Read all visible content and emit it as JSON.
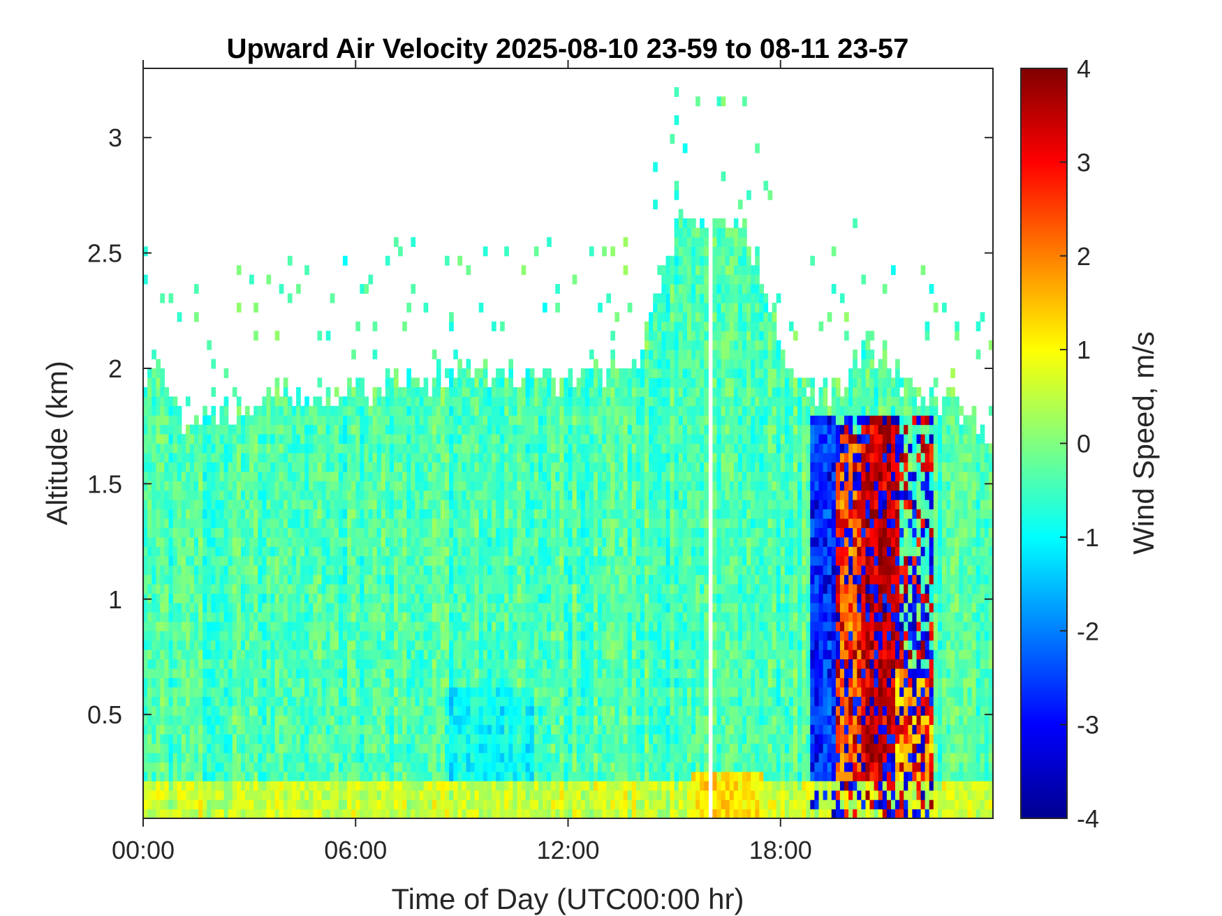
{
  "chart_data": {
    "type": "heatmap",
    "title": "Upward Air Velocity 2025-08-10 23-59 to 08-11 23-57",
    "xlabel": "Time of Day (UTC00:00 hr)",
    "ylabel": "Altitude (km)",
    "colorbar_label": "Wind Speed, m/s",
    "x_unit": "hours",
    "xlim": [
      0,
      24
    ],
    "ylim": [
      0.05,
      3.3
    ],
    "clim": [
      -4,
      4
    ],
    "colormap": "jet",
    "x_ticks": [
      {
        "value": 0,
        "label": "00:00"
      },
      {
        "value": 6,
        "label": "06:00"
      },
      {
        "value": 12,
        "label": "12:00"
      },
      {
        "value": 18,
        "label": "18:00"
      }
    ],
    "y_ticks": [
      {
        "value": 0.5,
        "label": "0.5"
      },
      {
        "value": 1,
        "label": "1"
      },
      {
        "value": 1.5,
        "label": "1.5"
      },
      {
        "value": 2,
        "label": "2"
      },
      {
        "value": 2.5,
        "label": "2.5"
      },
      {
        "value": 3,
        "label": "3"
      }
    ],
    "colorbar_ticks": [
      {
        "value": 4,
        "label": "4"
      },
      {
        "value": 3,
        "label": "3"
      },
      {
        "value": 2,
        "label": "2"
      },
      {
        "value": 1,
        "label": "1"
      },
      {
        "value": 0,
        "label": "0"
      },
      {
        "value": -1,
        "label": "-1"
      },
      {
        "value": -2,
        "label": "-2"
      },
      {
        "value": -3,
        "label": "-3"
      },
      {
        "value": -4,
        "label": "-4"
      }
    ],
    "data_gap_hours": [
      15.9,
      16.05
    ],
    "echo_top_km": [
      [
        0,
        1.9
      ],
      [
        0.5,
        2.0
      ],
      [
        1,
        1.8
      ],
      [
        2,
        1.8
      ],
      [
        3,
        1.85
      ],
      [
        4,
        1.9
      ],
      [
        5,
        1.85
      ],
      [
        6,
        1.9
      ],
      [
        7,
        1.95
      ],
      [
        8,
        1.95
      ],
      [
        9,
        2.0
      ],
      [
        10,
        2.0
      ],
      [
        11,
        1.95
      ],
      [
        12,
        1.95
      ],
      [
        13,
        1.95
      ],
      [
        14,
        2.05
      ],
      [
        14.5,
        2.3
      ],
      [
        15,
        2.6
      ],
      [
        15.5,
        2.65
      ],
      [
        16,
        2.6
      ],
      [
        16.5,
        2.65
      ],
      [
        17,
        2.6
      ],
      [
        17.5,
        2.4
      ],
      [
        18,
        2.1
      ],
      [
        18.5,
        2.0
      ],
      [
        19,
        1.85
      ],
      [
        19.5,
        1.9
      ],
      [
        20,
        2.0
      ],
      [
        20.5,
        2.1
      ],
      [
        21,
        2.05
      ],
      [
        21.5,
        1.95
      ],
      [
        22,
        1.9
      ],
      [
        22.5,
        1.85
      ],
      [
        23,
        1.85
      ],
      [
        23.5,
        1.75
      ],
      [
        24,
        1.6
      ]
    ],
    "regions": [
      {
        "x": [
          0,
          15.5
        ],
        "y": [
          0.05,
          2.0
        ],
        "value": -0.4
      },
      {
        "x": [
          8.5,
          11
        ],
        "y": [
          0.15,
          0.6
        ],
        "value": -0.9
      },
      {
        "x": [
          0,
          24
        ],
        "y": [
          0.05,
          0.2
        ],
        "value": 0.6
      },
      {
        "x": [
          15.5,
          17.5
        ],
        "y": [
          0.05,
          0.25
        ],
        "value": 1.2
      },
      {
        "x": [
          18.8,
          19.6
        ],
        "y": [
          0.2,
          1.8
        ],
        "value": -2.5
      },
      {
        "x": [
          19.6,
          20.3
        ],
        "y": [
          0.2,
          1.7
        ],
        "value": 2.0
      },
      {
        "x": [
          20.3,
          21.3
        ],
        "y": [
          0.2,
          1.8
        ],
        "value": 3.5
      },
      {
        "x": [
          21.3,
          22.3
        ],
        "y": [
          0.2,
          0.7
        ],
        "value": 1.5
      }
    ]
  }
}
